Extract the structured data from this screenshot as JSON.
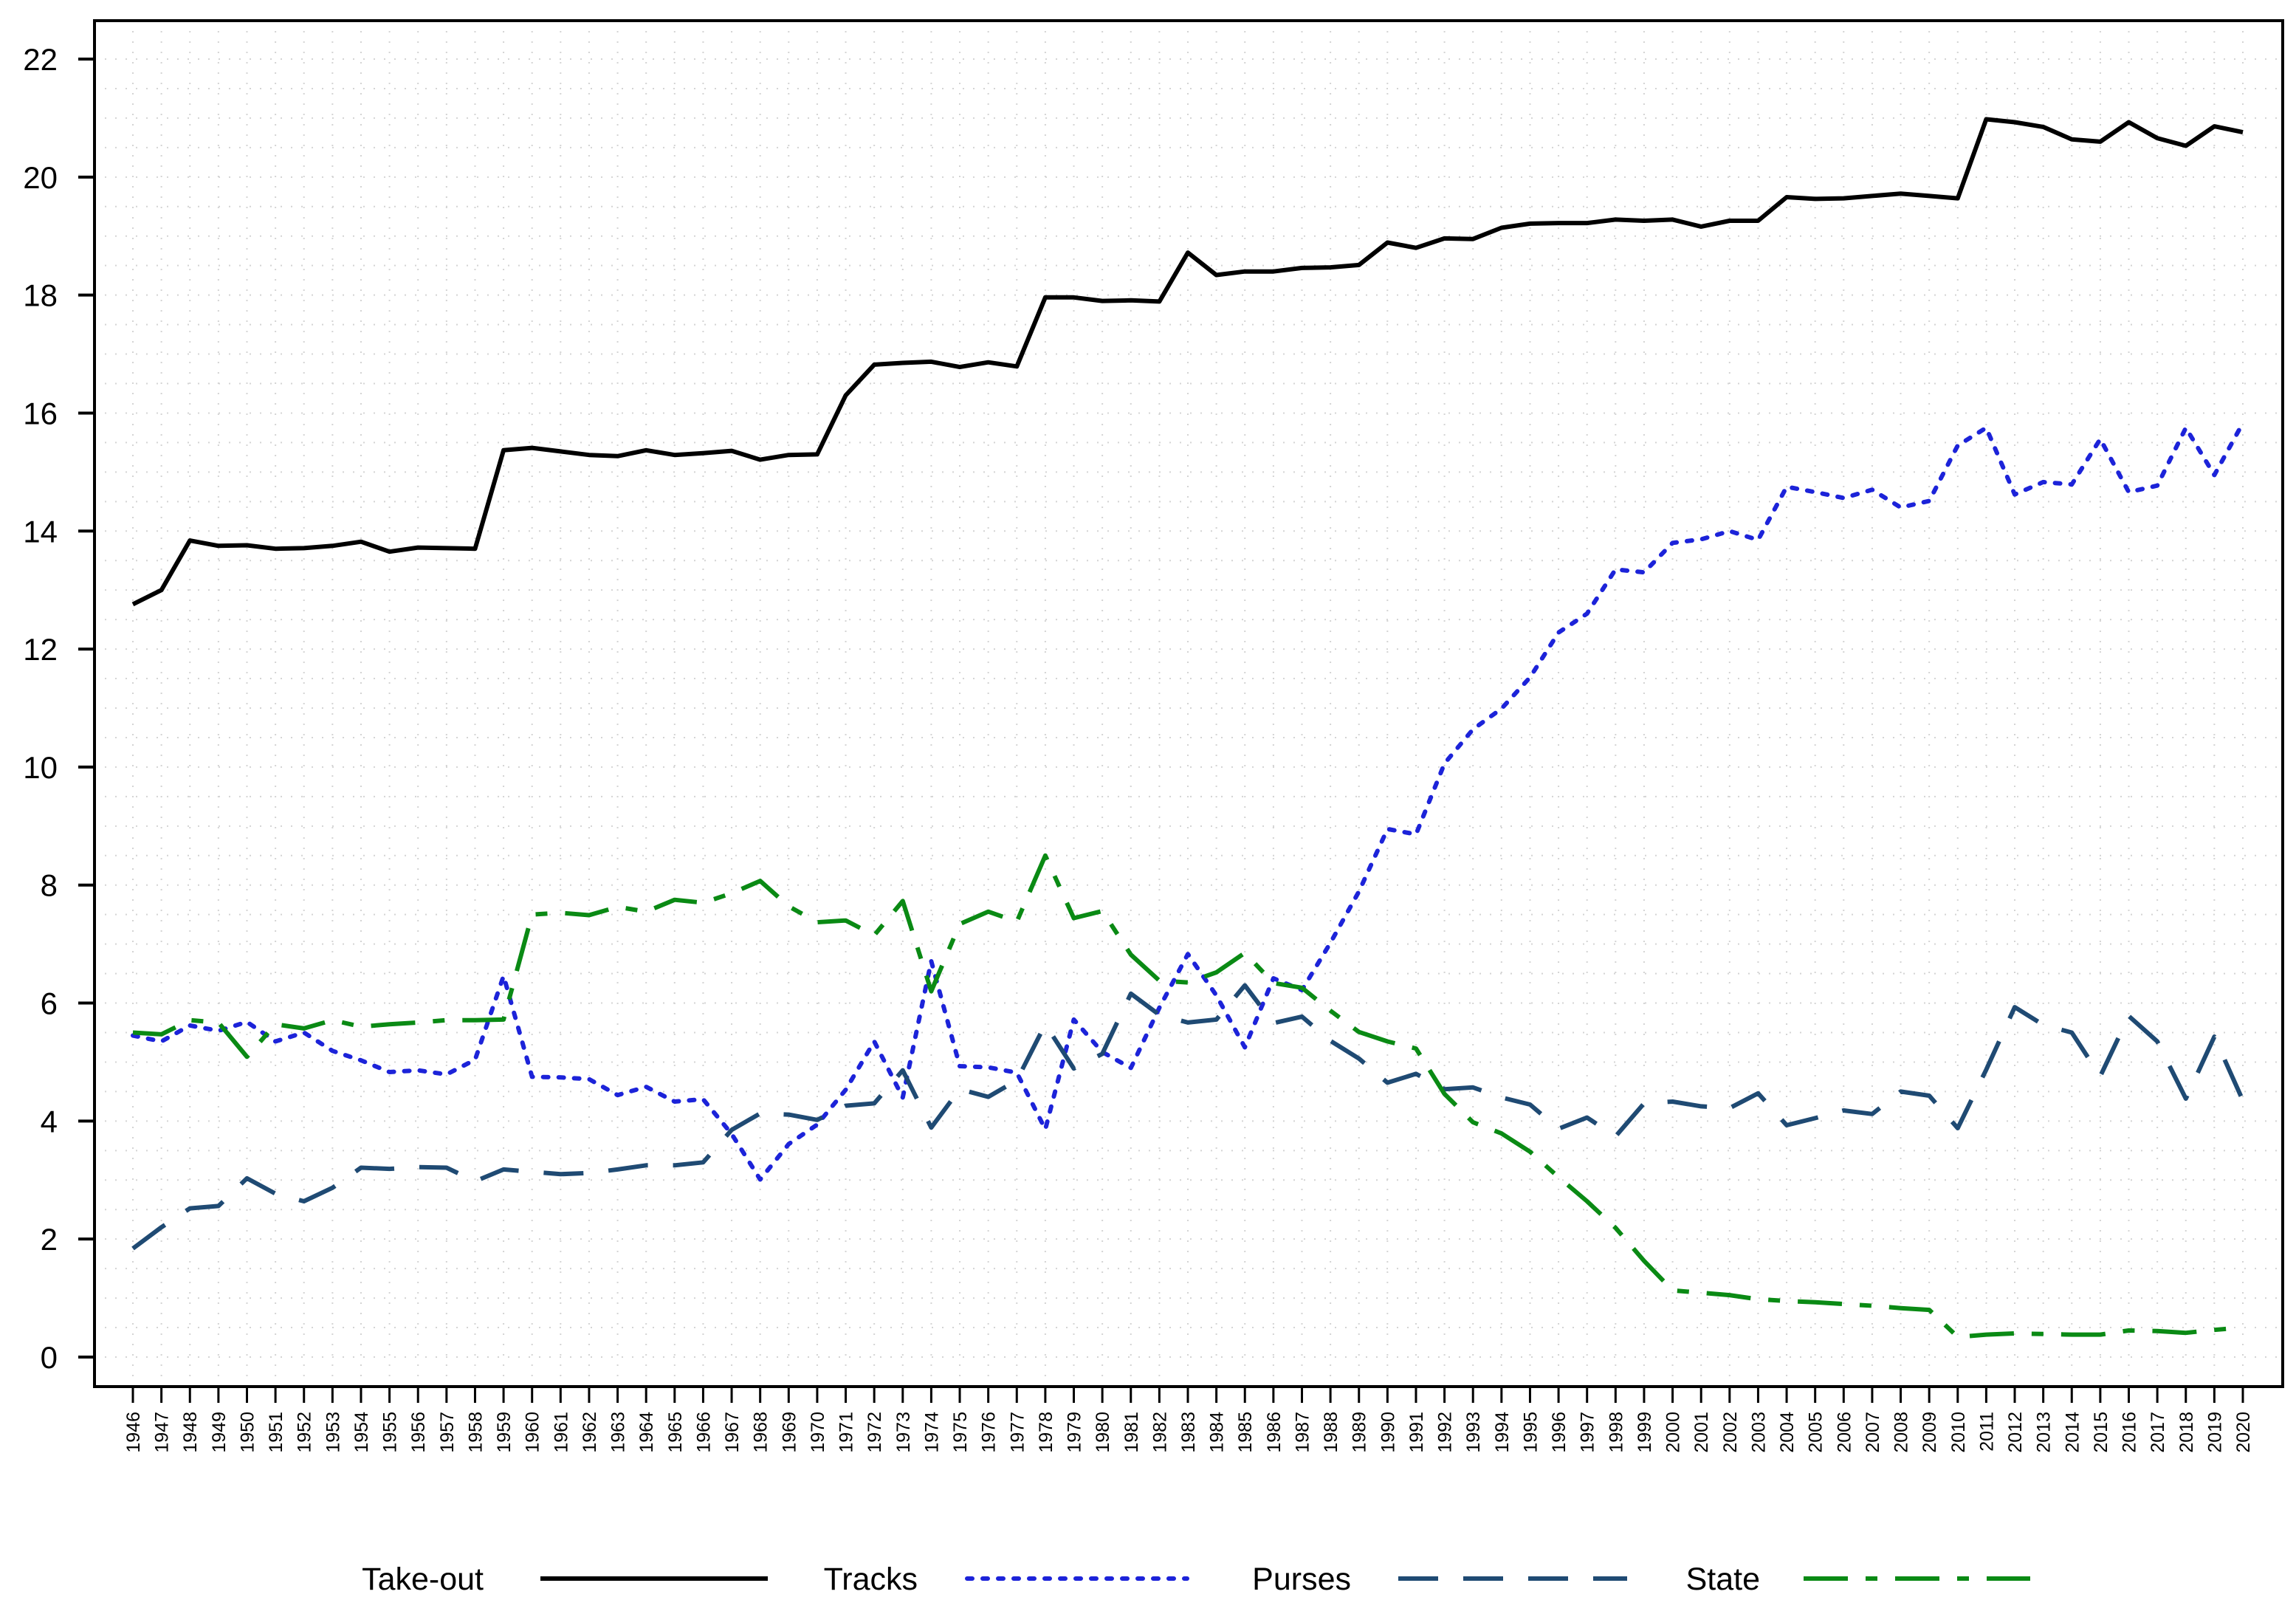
{
  "chart_data": {
    "type": "line",
    "title": "",
    "xlabel": "",
    "ylabel": "",
    "x": [
      1946,
      1947,
      1948,
      1949,
      1950,
      1951,
      1952,
      1953,
      1954,
      1955,
      1956,
      1957,
      1958,
      1959,
      1960,
      1961,
      1962,
      1963,
      1964,
      1965,
      1966,
      1967,
      1968,
      1969,
      1970,
      1971,
      1972,
      1973,
      1974,
      1975,
      1976,
      1977,
      1978,
      1979,
      1980,
      1981,
      1982,
      1983,
      1984,
      1985,
      1986,
      1987,
      1988,
      1989,
      1990,
      1991,
      1992,
      1993,
      1994,
      1995,
      1996,
      1997,
      1998,
      1999,
      2000,
      2001,
      2002,
      2003,
      2004,
      2005,
      2006,
      2007,
      2008,
      2009,
      2010,
      2011,
      2012,
      2013,
      2014,
      2015,
      2016,
      2017,
      2018,
      2019,
      2020
    ],
    "x_tick_labels": [
      "1946",
      "1947",
      "1948",
      "1949",
      "1950",
      "1951",
      "1952",
      "1953",
      "1954",
      "1955",
      "1956",
      "1957",
      "1958",
      "1959",
      "1960",
      "1961",
      "1962",
      "1963",
      "1964",
      "1965",
      "1966",
      "1967",
      "1968",
      "1969",
      "1970",
      "1971",
      "1972",
      "1973",
      "1974",
      "1975",
      "1976",
      "1977",
      "1978",
      "1979",
      "1980",
      "1981",
      "1982",
      "1983",
      "1984",
      "1985",
      "1986",
      "1987",
      "1988",
      "1989",
      "1990",
      "1991",
      "1992",
      "1993",
      "1994",
      "1995",
      "1996",
      "1997",
      "1998",
      "1999",
      "2000",
      "2001",
      "2002",
      "2003",
      "2004",
      "2005",
      "2006",
      "2007",
      "2008",
      "2009",
      "2010",
      "2011",
      "2012",
      "2013",
      "2014",
      "2015",
      "2016",
      "2017",
      "2018",
      "2019",
      "2020"
    ],
    "ylim": [
      0,
      22
    ],
    "y_ticks": [
      0,
      2,
      4,
      6,
      8,
      10,
      12,
      14,
      16,
      18,
      20,
      22
    ],
    "grid": true,
    "legend_position": "bottom",
    "series": [
      {
        "name": "Take-out",
        "color": "#000000",
        "style": "solid",
        "values": [
          12.76,
          13.0,
          13.84,
          13.75,
          13.76,
          13.7,
          13.71,
          13.75,
          13.82,
          13.65,
          13.72,
          13.71,
          13.7,
          15.37,
          15.41,
          15.35,
          15.29,
          15.27,
          15.37,
          15.29,
          15.32,
          15.36,
          15.21,
          15.29,
          15.3,
          16.3,
          16.82,
          16.85,
          16.87,
          16.78,
          16.86,
          16.79,
          17.96,
          17.96,
          17.9,
          17.91,
          17.89,
          18.72,
          18.34,
          18.4,
          18.4,
          18.46,
          18.47,
          18.51,
          18.89,
          18.8,
          18.96,
          18.95,
          19.14,
          19.21,
          19.22,
          19.22,
          19.28,
          19.26,
          19.28,
          19.16,
          19.26,
          19.26,
          19.66,
          19.63,
          19.64,
          19.68,
          19.72,
          19.68,
          19.64,
          20.98,
          20.93,
          20.85,
          20.64,
          20.6,
          20.93,
          20.66,
          20.53,
          20.86,
          20.76
        ]
      },
      {
        "name": "Tracks",
        "color": "#1c23d9",
        "style": "dotted",
        "values": [
          5.45,
          5.35,
          5.62,
          5.53,
          5.68,
          5.35,
          5.5,
          5.19,
          5.03,
          4.83,
          4.86,
          4.79,
          5.04,
          6.46,
          4.75,
          4.74,
          4.71,
          4.44,
          4.58,
          4.33,
          4.37,
          3.78,
          3.01,
          3.61,
          3.94,
          4.53,
          5.35,
          4.4,
          6.71,
          4.93,
          4.91,
          4.82,
          3.86,
          5.72,
          5.17,
          4.9,
          5.92,
          6.83,
          6.13,
          5.25,
          6.42,
          6.22,
          7.02,
          7.89,
          8.95,
          8.86,
          10.06,
          10.64,
          10.99,
          11.52,
          12.28,
          12.6,
          13.35,
          13.3,
          13.8,
          13.86,
          14.0,
          13.85,
          14.75,
          14.66,
          14.56,
          14.7,
          14.4,
          14.51,
          15.45,
          15.75,
          14.62,
          14.83,
          14.79,
          15.56,
          14.66,
          14.77,
          15.75,
          14.95,
          15.83
        ]
      },
      {
        "name": "Purses",
        "color": "#1f4a73",
        "style": "dashed",
        "values": [
          1.84,
          2.2,
          2.52,
          2.56,
          3.03,
          2.77,
          2.64,
          2.87,
          3.21,
          3.19,
          3.22,
          3.21,
          2.98,
          3.18,
          3.14,
          3.1,
          3.12,
          3.18,
          3.25,
          3.25,
          3.3,
          3.85,
          4.13,
          4.11,
          4.02,
          4.26,
          4.3,
          4.86,
          3.89,
          4.54,
          4.41,
          4.69,
          5.64,
          4.89,
          5.14,
          6.16,
          5.8,
          5.67,
          5.72,
          6.3,
          5.66,
          5.77,
          5.36,
          5.06,
          4.65,
          4.8,
          4.54,
          4.57,
          4.4,
          4.28,
          3.87,
          4.06,
          3.74,
          4.3,
          4.33,
          4.25,
          4.22,
          4.47,
          3.93,
          4.05,
          4.18,
          4.12,
          4.5,
          4.43,
          3.88,
          4.87,
          5.93,
          5.63,
          5.5,
          4.76,
          5.78,
          5.35,
          4.38,
          5.43,
          4.35
        ]
      },
      {
        "name": "State",
        "color": "#0a8a14",
        "style": "dashdot",
        "values": [
          5.5,
          5.47,
          5.71,
          5.67,
          5.09,
          5.64,
          5.57,
          5.71,
          5.6,
          5.64,
          5.67,
          5.71,
          5.71,
          5.72,
          7.5,
          7.53,
          7.49,
          7.63,
          7.55,
          7.75,
          7.7,
          7.86,
          8.07,
          7.64,
          7.37,
          7.4,
          7.15,
          7.73,
          6.2,
          7.34,
          7.55,
          7.38,
          8.5,
          7.44,
          7.56,
          6.82,
          6.38,
          6.35,
          6.52,
          6.85,
          6.34,
          6.26,
          5.87,
          5.51,
          5.35,
          5.23,
          4.46,
          3.98,
          3.79,
          3.48,
          3.05,
          2.64,
          2.19,
          1.63,
          1.13,
          1.09,
          1.05,
          0.98,
          0.95,
          0.93,
          0.9,
          0.87,
          0.83,
          0.8,
          0.34,
          0.38,
          0.4,
          0.39,
          0.38,
          0.38,
          0.45,
          0.44,
          0.41,
          0.46,
          0.5
        ]
      }
    ]
  }
}
